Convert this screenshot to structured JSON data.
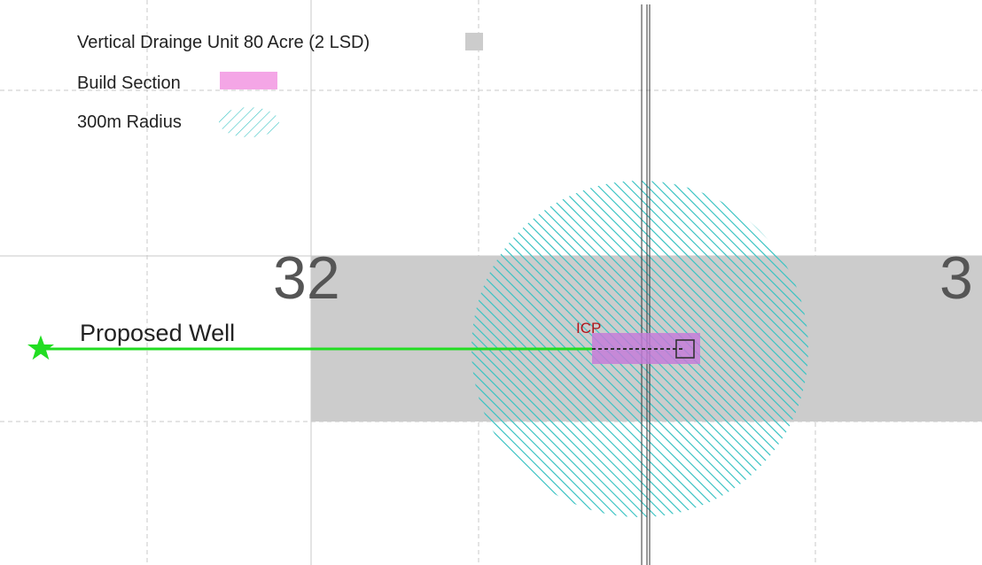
{
  "legend": {
    "items": [
      {
        "label": "Vertical Drainge Unit 80 Acre (2 LSD)",
        "swatch": "solid",
        "color": "#cccccc"
      },
      {
        "label": "Build Section",
        "swatch": "solid",
        "color": "#f4a6e6"
      },
      {
        "label": "300m Radius",
        "swatch": "hatch",
        "color": "#3cc4c4"
      }
    ]
  },
  "map": {
    "sections": [
      "32",
      "3"
    ],
    "well_label": "Proposed Well",
    "icp_label": "ICP",
    "colors": {
      "background": "#ffffff",
      "grid_line": "#c8c8c8",
      "drainage_unit": "#cccccc",
      "build_section": "#c57ad9",
      "radius_hatch": "#3cc4c4",
      "well_path": "#22dd22",
      "well_star": "#22dd22",
      "road_line": "#333333",
      "icp_text": "#b0141b"
    },
    "icons": {
      "surface_location": "star-icon",
      "icp_marker": "square-marker-icon"
    }
  }
}
